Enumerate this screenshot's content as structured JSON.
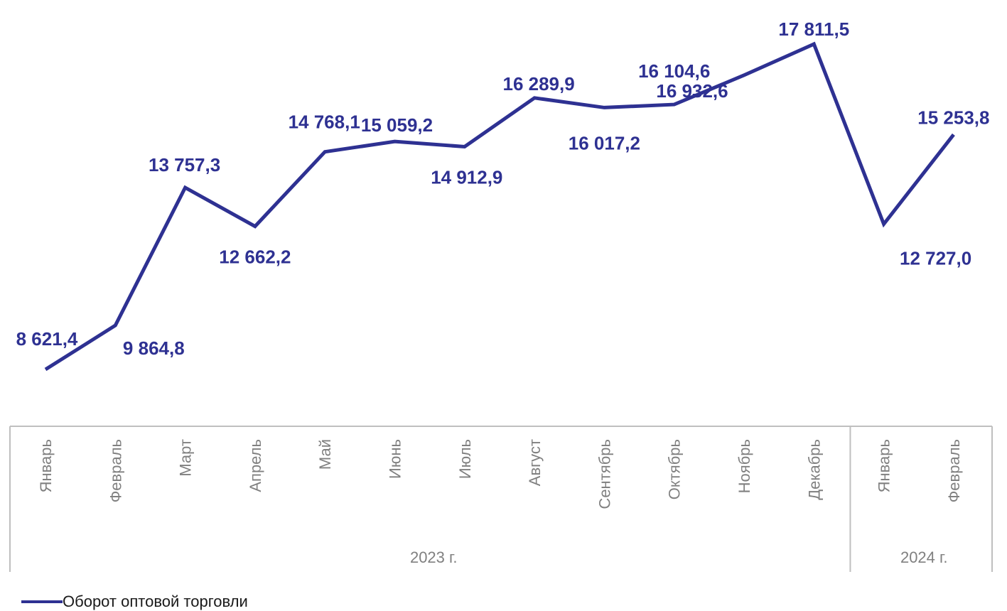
{
  "chart_data": {
    "type": "line",
    "categories": [
      "Январь",
      "Февраль",
      "Март",
      "Апрель",
      "Май",
      "Июнь",
      "Июль",
      "Август",
      "Сентябрь",
      "Октябрь",
      "Ноябрь",
      "Декабрь",
      "Январь",
      "Февраль"
    ],
    "groups": [
      {
        "label": "2023 г.",
        "count": 12
      },
      {
        "label": "2024 г.",
        "count": 2
      }
    ],
    "series": [
      {
        "name": "Оборот оптовой торговли",
        "color": "#2e3192",
        "values": [
          8621.4,
          9864.8,
          13757.3,
          12662.2,
          14768.1,
          15059.2,
          14912.9,
          16289.9,
          16017.2,
          16104.6,
          16932.6,
          17811.5,
          12727.0,
          15253.8
        ],
        "labels": [
          "8 621,4",
          "9 864,8",
          "13 757,3",
          "12 662,2",
          "14 768,1",
          "15 059,2",
          "14 912,9",
          "16 289,9",
          "16 017,2",
          "16 104,6",
          "16 932,6",
          "17 811,5",
          "12 727,0",
          "15 253,8"
        ]
      }
    ],
    "ylim": [
      7500,
      18500
    ],
    "grid": false,
    "legend_position": "bottom-left"
  }
}
